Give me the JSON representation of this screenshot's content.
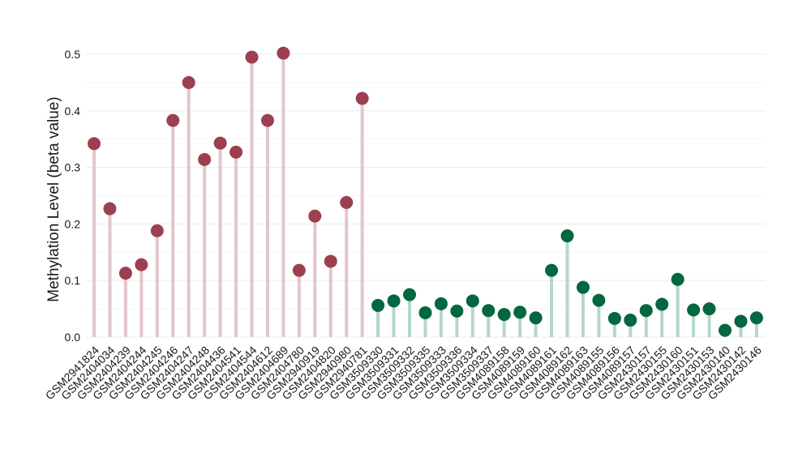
{
  "chart_data": {
    "type": "lollipop",
    "ylabel": "Methylation Level (beta value)",
    "xlabel": "",
    "ylim": [
      0,
      0.51
    ],
    "yticks": [
      "0.0",
      "0.1",
      "0.2",
      "0.3",
      "0.4",
      "0.5"
    ],
    "grid": true,
    "legend": "none",
    "colors": {
      "group1_point": "#9c404f",
      "group1_stem": "#e2c6cc",
      "group2_point": "#03673f",
      "group2_stem": "#b5d6c8"
    },
    "categories": [
      "GSM2941824",
      "GSM2404034",
      "GSM2404239",
      "GSM2404244",
      "GSM2404245",
      "GSM2404246",
      "GSM2404247",
      "GSM2404248",
      "GSM2404436",
      "GSM2404541",
      "GSM2404544",
      "GSM2404612",
      "GSM2404689",
      "GSM2404780",
      "GSM2940919",
      "GSM2404820",
      "GSM2940980",
      "GSM2940781",
      "GSM3509330",
      "GSM3509331",
      "GSM3509332",
      "GSM3509335",
      "GSM3509333",
      "GSM3509336",
      "GSM3509334",
      "GSM3509337",
      "GSM4089158",
      "GSM4089159",
      "GSM4089160",
      "GSM4089161",
      "GSM4089162",
      "GSM4089163",
      "GSM4089155",
      "GSM4089156",
      "GSM4089157",
      "GSM2430157",
      "GSM2430155",
      "GSM2430160",
      "GSM2430151",
      "GSM2430153",
      "GSM2430140",
      "GSM2430142",
      "GSM2430146"
    ],
    "values": [
      0.342,
      0.227,
      0.113,
      0.128,
      0.188,
      0.383,
      0.45,
      0.314,
      0.343,
      0.327,
      0.495,
      0.383,
      0.502,
      0.118,
      0.214,
      0.134,
      0.238,
      0.422,
      0.056,
      0.064,
      0.075,
      0.043,
      0.059,
      0.046,
      0.064,
      0.047,
      0.04,
      0.044,
      0.034,
      0.118,
      0.179,
      0.088,
      0.065,
      0.033,
      0.03,
      0.047,
      0.058,
      0.102,
      0.048,
      0.05,
      0.012,
      0.028,
      0.034
    ],
    "groups": [
      1,
      1,
      1,
      1,
      1,
      1,
      1,
      1,
      1,
      1,
      1,
      1,
      1,
      1,
      1,
      1,
      1,
      1,
      2,
      2,
      2,
      2,
      2,
      2,
      2,
      2,
      2,
      2,
      2,
      2,
      2,
      2,
      2,
      2,
      2,
      2,
      2,
      2,
      2,
      2,
      2,
      2,
      2
    ]
  }
}
